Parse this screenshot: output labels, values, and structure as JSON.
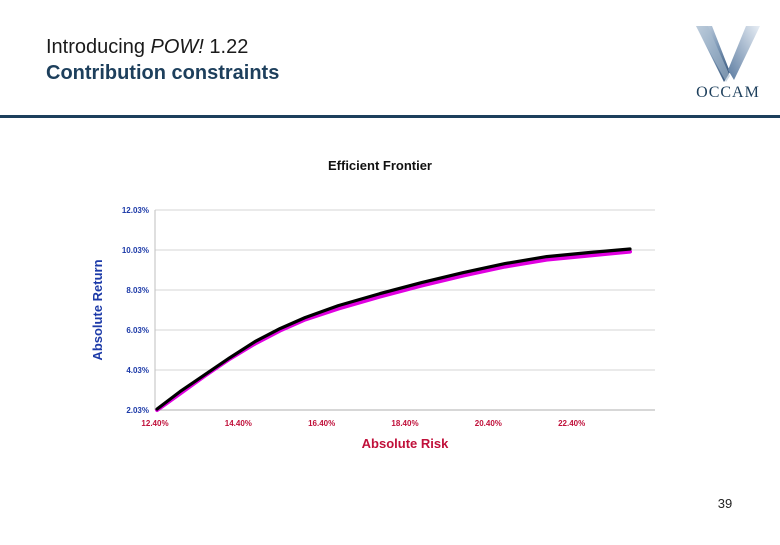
{
  "header": {
    "title_part1": "Introducing ",
    "title_italic": "POW!",
    "title_part2": " 1.22",
    "subtitle": "Contribution constraints"
  },
  "logo": {
    "text": "OCCAM",
    "icon": "occam-v-logo-icon"
  },
  "page_number": "39",
  "colors": {
    "accent": "#1d3f5c",
    "axis_label": "#0b2fa6",
    "tick_label": "#1c3aa8",
    "axis_title": "#c0103a",
    "series_black": "#000000",
    "series_magenta": "#e000e0"
  },
  "chart_data": {
    "type": "line",
    "title": "Efficient Frontier",
    "xlabel": "Absolute Risk",
    "ylabel": "Absolute Return",
    "xlim": [
      12.4,
      24.4
    ],
    "ylim": [
      2.03,
      12.03
    ],
    "x_ticks": [
      "12.40%",
      "14.40%",
      "16.40%",
      "18.40%",
      "20.40%",
      "22.40%"
    ],
    "x_tick_values": [
      12.4,
      14.4,
      16.4,
      18.4,
      20.4,
      22.4
    ],
    "y_ticks": [
      "2.03%",
      "4.03%",
      "6.03%",
      "8.03%",
      "10.03%",
      "12.03%"
    ],
    "y_tick_values": [
      2.03,
      4.03,
      6.03,
      8.03,
      10.03,
      12.03
    ],
    "grid": true,
    "series": [
      {
        "color": "#e000e0",
        "x": [
          12.45,
          13.0,
          13.6,
          14.2,
          14.8,
          15.4,
          16.0,
          16.8,
          17.8,
          18.8,
          19.8,
          20.8,
          21.8,
          22.8,
          23.8
        ],
        "y": [
          2.03,
          2.85,
          3.75,
          4.6,
          5.35,
          6.0,
          6.55,
          7.1,
          7.7,
          8.25,
          8.75,
          9.2,
          9.55,
          9.75,
          9.95
        ]
      },
      {
        "color": "#000000",
        "x": [
          12.45,
          13.0,
          13.6,
          14.2,
          14.8,
          15.4,
          16.0,
          16.8,
          17.8,
          18.8,
          19.8,
          20.8,
          21.8,
          22.8,
          23.8
        ],
        "y": [
          2.08,
          2.95,
          3.8,
          4.65,
          5.45,
          6.1,
          6.65,
          7.25,
          7.85,
          8.4,
          8.9,
          9.35,
          9.7,
          9.9,
          10.08
        ]
      }
    ]
  }
}
